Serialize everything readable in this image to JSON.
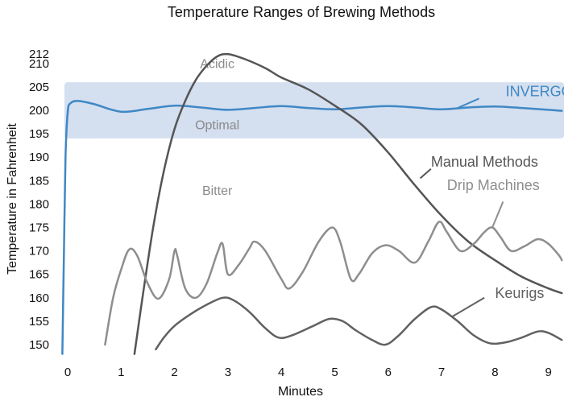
{
  "chart_data": {
    "type": "line",
    "title": "Temperature Ranges of Brewing Methods",
    "xlabel": "Minutes",
    "ylabel": "Temperature  in  Fahrenheit",
    "xlim": [
      0,
      9
    ],
    "ylim": [
      150,
      212
    ],
    "xticks": [
      0,
      1,
      2,
      3,
      4,
      5,
      6,
      7,
      8,
      9
    ],
    "yticks": [
      150,
      155,
      160,
      165,
      170,
      175,
      180,
      185,
      190,
      195,
      200,
      205,
      210,
      212
    ],
    "grid": false,
    "band": {
      "y": [
        194,
        206
      ],
      "color": "#d4dff0"
    },
    "zones": [
      {
        "label": "Acidic",
        "x": 2.8,
        "y": 209
      },
      {
        "label": "Optimal",
        "x": 2.8,
        "y": 196
      },
      {
        "label": "Bitter",
        "x": 2.8,
        "y": 182
      }
    ],
    "series": [
      {
        "name": "INVERGO",
        "color": "#3f88c5",
        "width": 2.5,
        "points": [
          [
            -0.1,
            148
          ],
          [
            -0.07,
            170
          ],
          [
            -0.04,
            190
          ],
          [
            0,
            199.5
          ],
          [
            0.05,
            201.5
          ],
          [
            0.2,
            202
          ],
          [
            0.5,
            201.3
          ],
          [
            1,
            199.7
          ],
          [
            1.5,
            200.3
          ],
          [
            2,
            201
          ],
          [
            2.5,
            200.6
          ],
          [
            3,
            200.1
          ],
          [
            3.5,
            200.5
          ],
          [
            4,
            200.9
          ],
          [
            4.5,
            200.5
          ],
          [
            5,
            200.2
          ],
          [
            5.5,
            200.6
          ],
          [
            6,
            200.9
          ],
          [
            6.5,
            200.6
          ],
          [
            7,
            200.2
          ],
          [
            7.5,
            200.6
          ],
          [
            8,
            200.8
          ],
          [
            8.5,
            200.5
          ],
          [
            9,
            200.1
          ],
          [
            9.25,
            199.9
          ]
        ],
        "label": {
          "x": 8.2,
          "y": 203
        },
        "leader": [
          [
            7.3,
            200.5
          ],
          [
            7.7,
            202.5
          ]
        ]
      },
      {
        "name": "Manual Methods",
        "color": "#555555",
        "width": 2.5,
        "points": [
          [
            1.25,
            148
          ],
          [
            1.4,
            160
          ],
          [
            1.6,
            175
          ],
          [
            1.8,
            187
          ],
          [
            2.0,
            196
          ],
          [
            2.2,
            202
          ],
          [
            2.4,
            206.5
          ],
          [
            2.6,
            209.5
          ],
          [
            2.8,
            211.5
          ],
          [
            3.0,
            212
          ],
          [
            3.3,
            211
          ],
          [
            3.7,
            209
          ],
          [
            4.0,
            207
          ],
          [
            4.5,
            204.5
          ],
          [
            5.0,
            201
          ],
          [
            5.5,
            197
          ],
          [
            6.0,
            191
          ],
          [
            6.5,
            184
          ],
          [
            7.0,
            177.5
          ],
          [
            7.5,
            172
          ],
          [
            8.0,
            168
          ],
          [
            8.5,
            164.5
          ],
          [
            9.0,
            162
          ],
          [
            9.25,
            161
          ]
        ],
        "label": {
          "x": 6.8,
          "y": 188
        },
        "leader": [
          [
            6.6,
            185.5
          ],
          [
            6.8,
            187.5
          ]
        ]
      },
      {
        "name": "Drip Machines",
        "color": "#8e8e8e",
        "width": 2.5,
        "points": [
          [
            0.7,
            150
          ],
          [
            0.85,
            160
          ],
          [
            1.0,
            166
          ],
          [
            1.15,
            170.3
          ],
          [
            1.3,
            169
          ],
          [
            1.5,
            163
          ],
          [
            1.7,
            159.8
          ],
          [
            1.9,
            164
          ],
          [
            2.0,
            170
          ],
          [
            2.05,
            169
          ],
          [
            2.2,
            162
          ],
          [
            2.4,
            160
          ],
          [
            2.6,
            163
          ],
          [
            2.8,
            169.5
          ],
          [
            2.9,
            171.5
          ],
          [
            3.0,
            165
          ],
          [
            3.2,
            167
          ],
          [
            3.4,
            170.5
          ],
          [
            3.5,
            172
          ],
          [
            3.7,
            170
          ],
          [
            4.0,
            164
          ],
          [
            4.15,
            162
          ],
          [
            4.4,
            165.5
          ],
          [
            4.7,
            172
          ],
          [
            4.95,
            175
          ],
          [
            5.1,
            172
          ],
          [
            5.3,
            164
          ],
          [
            5.45,
            165
          ],
          [
            5.7,
            169.5
          ],
          [
            5.95,
            171.2
          ],
          [
            6.2,
            170
          ],
          [
            6.5,
            167.5
          ],
          [
            6.75,
            172
          ],
          [
            6.95,
            176.2
          ],
          [
            7.1,
            174
          ],
          [
            7.35,
            170
          ],
          [
            7.6,
            171.5
          ],
          [
            7.8,
            174
          ],
          [
            7.95,
            175
          ],
          [
            8.1,
            173
          ],
          [
            8.3,
            170
          ],
          [
            8.55,
            171
          ],
          [
            8.8,
            172.5
          ],
          [
            9.0,
            171.5
          ],
          [
            9.2,
            169
          ],
          [
            9.25,
            168
          ]
        ],
        "label": {
          "x": 7.1,
          "y": 183
        },
        "leader": [
          [
            7.95,
            175
          ],
          [
            8.15,
            180.5
          ]
        ]
      },
      {
        "name": "Keurigs",
        "color": "#616161",
        "width": 2.5,
        "points": [
          [
            1.65,
            149
          ],
          [
            1.8,
            151.5
          ],
          [
            2.0,
            154
          ],
          [
            2.3,
            156.5
          ],
          [
            2.6,
            158.5
          ],
          [
            2.9,
            160
          ],
          [
            3.1,
            159.5
          ],
          [
            3.4,
            157
          ],
          [
            3.7,
            153.5
          ],
          [
            3.95,
            151.5
          ],
          [
            4.2,
            152
          ],
          [
            4.6,
            154
          ],
          [
            4.9,
            155.5
          ],
          [
            5.15,
            155
          ],
          [
            5.4,
            153
          ],
          [
            5.7,
            151
          ],
          [
            5.95,
            150
          ],
          [
            6.2,
            152
          ],
          [
            6.5,
            155.5
          ],
          [
            6.8,
            158
          ],
          [
            7.0,
            157.5
          ],
          [
            7.3,
            155
          ],
          [
            7.6,
            152
          ],
          [
            7.9,
            150.3
          ],
          [
            8.2,
            150.5
          ],
          [
            8.5,
            151.5
          ],
          [
            8.8,
            152.8
          ],
          [
            9.0,
            152.5
          ],
          [
            9.25,
            151
          ]
        ],
        "label": {
          "x": 8.0,
          "y": 160
        },
        "leader": [
          [
            7.2,
            156
          ],
          [
            7.8,
            160
          ]
        ]
      }
    ]
  }
}
